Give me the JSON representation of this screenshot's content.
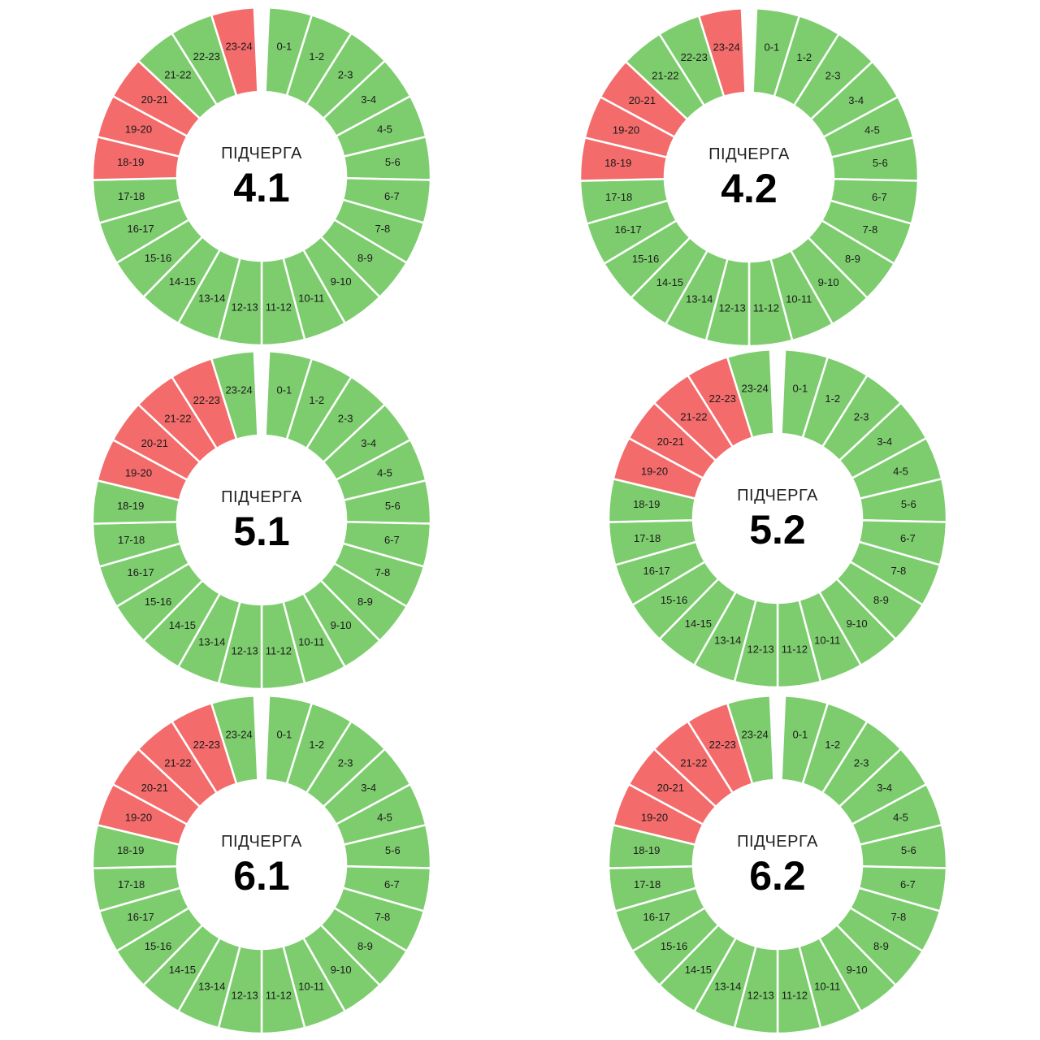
{
  "colors": {
    "on": "#7dcd6e",
    "off": "#f46b6b",
    "hole": "#ffffff"
  },
  "caption": "ПІДЧЕРГА",
  "slot_labels": [
    "0-1",
    "1-2",
    "2-3",
    "3-4",
    "4-5",
    "5-6",
    "6-7",
    "7-8",
    "8-9",
    "9-10",
    "10-11",
    "11-12",
    "12-13",
    "13-14",
    "14-15",
    "15-16",
    "16-17",
    "17-18",
    "18-19",
    "19-20",
    "20-21",
    "21-22",
    "22-23",
    "23-24"
  ],
  "chart_data": [
    {
      "type": "pie",
      "variant": "donut",
      "queue": "4.1",
      "off_hours": [
        "18-19",
        "19-20",
        "20-21",
        "23-24"
      ]
    },
    {
      "type": "pie",
      "variant": "donut",
      "queue": "4.2",
      "off_hours": [
        "18-19",
        "19-20",
        "20-21",
        "23-24"
      ]
    },
    {
      "type": "pie",
      "variant": "donut",
      "queue": "5.1",
      "off_hours": [
        "19-20",
        "20-21",
        "21-22",
        "22-23"
      ]
    },
    {
      "type": "pie",
      "variant": "donut",
      "queue": "5.2",
      "off_hours": [
        "19-20",
        "20-21",
        "21-22",
        "22-23"
      ]
    },
    {
      "type": "pie",
      "variant": "donut",
      "queue": "6.1",
      "off_hours": [
        "19-20",
        "20-21",
        "21-22",
        "22-23"
      ]
    },
    {
      "type": "pie",
      "variant": "donut",
      "queue": "6.2",
      "off_hours": [
        "19-20",
        "20-21",
        "21-22",
        "22-23"
      ]
    }
  ]
}
